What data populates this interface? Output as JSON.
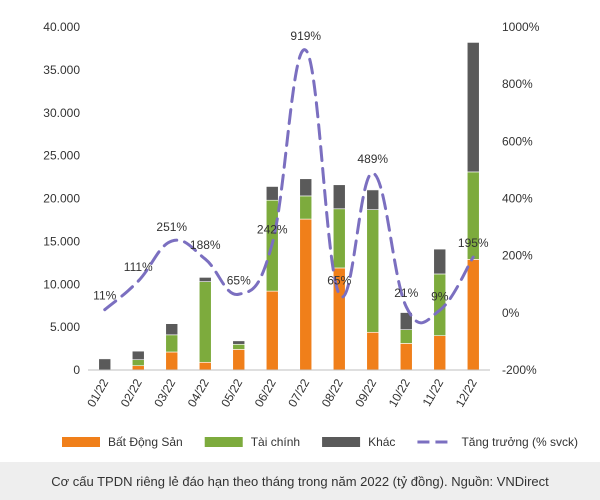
{
  "chart_data": {
    "type": "bar",
    "stacked": true,
    "categories": [
      "01/22",
      "02/22",
      "03/22",
      "04/22",
      "05/22",
      "06/22",
      "07/22",
      "08/22",
      "09/22",
      "10/22",
      "11/22",
      "12/22"
    ],
    "series": [
      {
        "name": "Bất Động Sản",
        "color": "#f07f1a",
        "values": [
          0,
          500,
          2100,
          900,
          2400,
          9200,
          17600,
          11900,
          4400,
          3100,
          4000,
          12900
        ]
      },
      {
        "name": "Tài chính",
        "color": "#7dab3d",
        "values": [
          0,
          700,
          2000,
          9400,
          600,
          10600,
          2700,
          6900,
          14300,
          1600,
          7200,
          10200
        ]
      },
      {
        "name": "Khác",
        "color": "#5a5a5a",
        "values": [
          1300,
          1000,
          1300,
          500,
          400,
          1600,
          2000,
          2800,
          2300,
          2000,
          2900,
          15100
        ]
      }
    ],
    "growth": {
      "name": "Tăng trưởng (% svck)",
      "color": "#7b6fc0",
      "values": [
        11,
        111,
        251,
        188,
        65,
        242,
        919,
        65,
        489,
        21,
        9,
        195
      ],
      "labels": [
        "11%",
        "111%",
        "251%",
        "188%",
        "65%",
        "242%",
        "919%",
        "65%",
        "489%",
        "21%",
        "9%",
        "195%"
      ]
    },
    "y_left": {
      "min": 0,
      "max": 40000,
      "ticks": [
        0,
        5000,
        10000,
        15000,
        20000,
        25000,
        30000,
        35000,
        40000
      ],
      "tick_labels": [
        "0",
        "5.000",
        "10.000",
        "15.000",
        "20.000",
        "25.000",
        "30.000",
        "35.000",
        "40.000"
      ]
    },
    "y_right": {
      "min": -200,
      "max": 1000,
      "ticks": [
        -200,
        0,
        200,
        400,
        600,
        800,
        1000
      ],
      "tick_labels": [
        "-200%",
        "0%",
        "200%",
        "400%",
        "600%",
        "800%",
        "1000%"
      ]
    },
    "legend_position": "bottom",
    "grid": false
  },
  "caption": "Cơ cấu TPDN riêng lẻ đáo hạn theo tháng trong năm 2022 (tỷ đồng). Nguồn: VNDirect"
}
